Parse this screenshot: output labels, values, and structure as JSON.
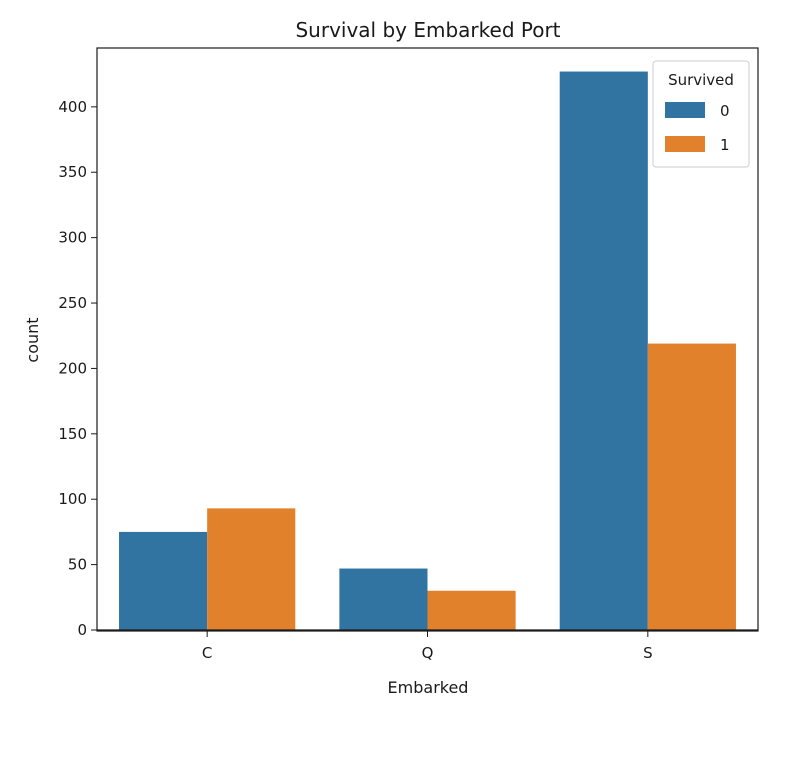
{
  "chart_data": {
    "type": "bar",
    "title": "Survival by Embarked Port",
    "xlabel": "Embarked",
    "ylabel": "count",
    "categories": [
      "C",
      "Q",
      "S"
    ],
    "series": [
      {
        "name": "0",
        "values": [
          75,
          47,
          427
        ],
        "color": "#3274a1"
      },
      {
        "name": "1",
        "values": [
          93,
          30,
          219
        ],
        "color": "#e1812c"
      }
    ],
    "ylim": [
      0,
      445
    ],
    "yticks": [
      0,
      50,
      100,
      150,
      200,
      250,
      300,
      350,
      400
    ],
    "legend": {
      "title": "Survived",
      "placement": "top-right"
    },
    "grid": false
  }
}
